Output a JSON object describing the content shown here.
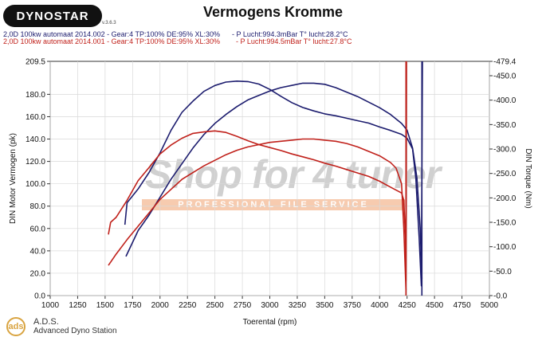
{
  "header": {
    "logo_text": "DYNOSTAR",
    "logo_sub": "v.3.6.3",
    "title": "Vermogens Kromme"
  },
  "runs": [
    {
      "label": "2,0D 100kw automaat 2014.002 - Gear:4 TP:100% DE:95% XL:30%      - P Lucht:994.3mBar T° lucht:28.2°C",
      "color": "#1c1c6e"
    },
    {
      "label": "2,0D 100kw automaat 2014.001 - Gear:4 TP:100% DE:95% XL:30%        - P Lucht:994.5mBar T° lucht:27.8°C",
      "color": "#c0201a"
    }
  ],
  "watermark": {
    "main": "Shop for 4 tuner",
    "tag": "PROFESSIONAL FILE SERVICE"
  },
  "footer": {
    "icon_text": "ads",
    "title": "A.D.S.",
    "subtitle": "Advanced Dyno Station"
  },
  "chart_data": {
    "type": "line",
    "xlabel": "Toerental (rpm)",
    "ylabel": "DIN Motor Vermogen (pk)",
    "y2label": "DIN Torque (Nm)",
    "xlim": [
      1000,
      5000
    ],
    "ylim": [
      0,
      209.5
    ],
    "y2lim": [
      0,
      479.4
    ],
    "xticks": [
      1000,
      1250,
      1500,
      1750,
      2000,
      2250,
      2500,
      2750,
      3000,
      3250,
      3500,
      3750,
      4000,
      4250,
      4500,
      4750,
      5000
    ],
    "yticks": [
      0,
      20,
      40,
      60,
      80,
      100,
      120,
      140,
      160,
      180,
      209.5
    ],
    "y2ticks": [
      0,
      50,
      100,
      150,
      200,
      250,
      300,
      350,
      400,
      450,
      479.4
    ],
    "grid": true,
    "series": [
      {
        "run": 0,
        "kind": "torque",
        "axis": "y2",
        "color": "#1c1c6e",
        "x": [
          1680,
          1700,
          1800,
          1900,
          2000,
          2100,
          2200,
          2300,
          2400,
          2500,
          2600,
          2700,
          2800,
          2900,
          3000,
          3100,
          3200,
          3300,
          3400,
          3500,
          3600,
          3700,
          3800,
          3900,
          4000,
          4100,
          4200,
          4250,
          4300,
          4330,
          4360,
          4380,
          4390
        ],
        "y": [
          145,
          190,
          218,
          252,
          292,
          338,
          375,
          398,
          418,
          430,
          437,
          439,
          438,
          433,
          422,
          408,
          395,
          385,
          378,
          372,
          368,
          363,
          358,
          353,
          345,
          338,
          330,
          322,
          300,
          240,
          120,
          20,
          479.4
        ]
      },
      {
        "run": 0,
        "kind": "power",
        "axis": "y1",
        "color": "#1c1c6e",
        "x": [
          1690,
          1800,
          1900,
          2000,
          2100,
          2200,
          2300,
          2400,
          2500,
          2600,
          2700,
          2800,
          2900,
          3000,
          3100,
          3200,
          3300,
          3400,
          3500,
          3600,
          3700,
          3800,
          3900,
          4000,
          4100,
          4200,
          4250,
          4300,
          4340,
          4370,
          4385
        ],
        "y": [
          35,
          58,
          72,
          88,
          104,
          118,
          132,
          144,
          154,
          162,
          169,
          175,
          179,
          183,
          186,
          188,
          190,
          190,
          189,
          186,
          182,
          178,
          173,
          168,
          162,
          154,
          148,
          132,
          105,
          60,
          15
        ]
      },
      {
        "run": 1,
        "kind": "torque",
        "axis": "y2",
        "color": "#c0201a",
        "x": [
          1530,
          1550,
          1600,
          1700,
          1800,
          1900,
          2000,
          2100,
          2200,
          2300,
          2400,
          2500,
          2600,
          2700,
          2800,
          2900,
          3000,
          3100,
          3200,
          3300,
          3400,
          3500,
          3600,
          3700,
          3800,
          3900,
          4000,
          4100,
          4200,
          4220,
          4235,
          4240,
          4245
        ],
        "y": [
          125,
          150,
          160,
          195,
          235,
          262,
          290,
          308,
          322,
          332,
          335,
          337,
          334,
          326,
          317,
          309,
          303,
          297,
          290,
          284,
          278,
          271,
          265,
          258,
          251,
          244,
          234,
          222,
          210,
          195,
          120,
          30,
          479.4
        ]
      },
      {
        "run": 1,
        "kind": "power",
        "axis": "y1",
        "color": "#c0201a",
        "x": [
          1530,
          1600,
          1700,
          1800,
          1900,
          2000,
          2100,
          2200,
          2300,
          2400,
          2500,
          2600,
          2700,
          2800,
          2900,
          3000,
          3100,
          3200,
          3300,
          3400,
          3500,
          3600,
          3700,
          3800,
          3900,
          4000,
          4100,
          4150,
          4200,
          4220,
          4240
        ],
        "y": [
          27,
          37,
          50,
          62,
          74,
          86,
          95,
          104,
          110,
          116,
          121,
          126,
          130,
          133,
          135,
          137,
          138,
          139,
          140,
          140,
          139,
          138,
          136,
          133,
          129,
          125,
          119,
          114,
          100,
          60,
          5
        ]
      }
    ],
    "rpm_markers": [
      {
        "x": 4385,
        "color": "#1c1c6e"
      },
      {
        "x": 4240,
        "color": "#c0201a"
      }
    ]
  }
}
